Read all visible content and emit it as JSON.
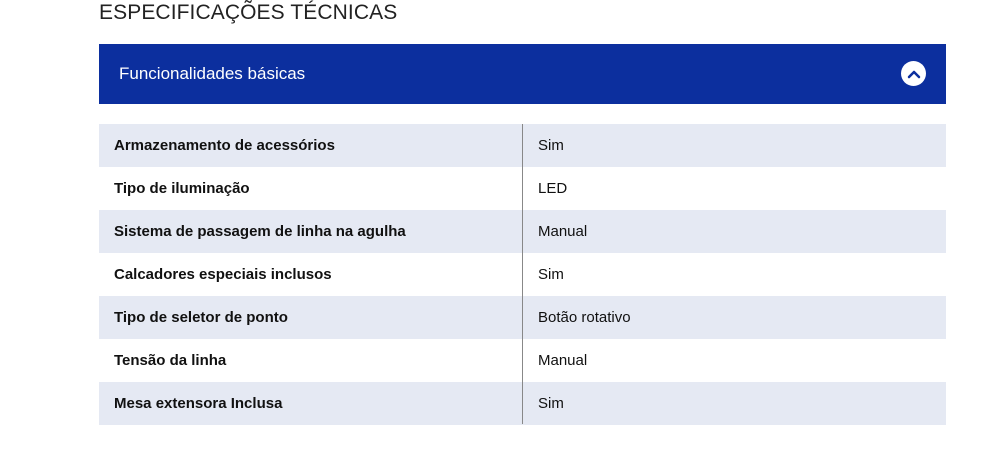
{
  "page_title": "ESPECIFICAÇÕES TÉCNICAS",
  "accordion": {
    "label": "Funcionalidades básicas",
    "expanded": true,
    "toggle_icon": "chevron-up-icon",
    "color": "#0c2f9e"
  },
  "specs": [
    {
      "name": "Armazenamento de acessórios",
      "value": "Sim"
    },
    {
      "name": "Tipo de iluminação",
      "value": "LED"
    },
    {
      "name": "Sistema de passagem de linha na agulha",
      "value": "Manual"
    },
    {
      "name": "Calcadores especiais inclusos",
      "value": "Sim"
    },
    {
      "name": "Tipo de seletor de ponto",
      "value": "Botão rotativo"
    },
    {
      "name": "Tensão da linha",
      "value": "Manual"
    },
    {
      "name": "Mesa extensora Inclusa",
      "value": "Sim"
    }
  ]
}
